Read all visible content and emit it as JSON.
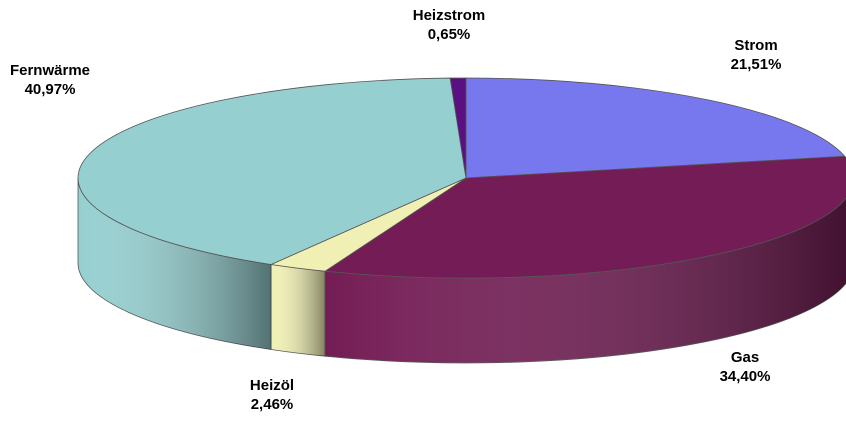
{
  "chart_data": {
    "type": "pie3d",
    "categories": [
      "Strom",
      "Gas",
      "Heizöl",
      "Fernwärme",
      "Heizstrom"
    ],
    "values": [
      21.51,
      34.4,
      2.46,
      40.97,
      0.65
    ],
    "value_labels": [
      "21,51%",
      "34,40%",
      "2,46%",
      "40,97%",
      "0,65%"
    ],
    "colors": [
      "#7878ee",
      "#741c55",
      "#f0f0b4",
      "#96cfd0",
      "#5a1080"
    ]
  }
}
